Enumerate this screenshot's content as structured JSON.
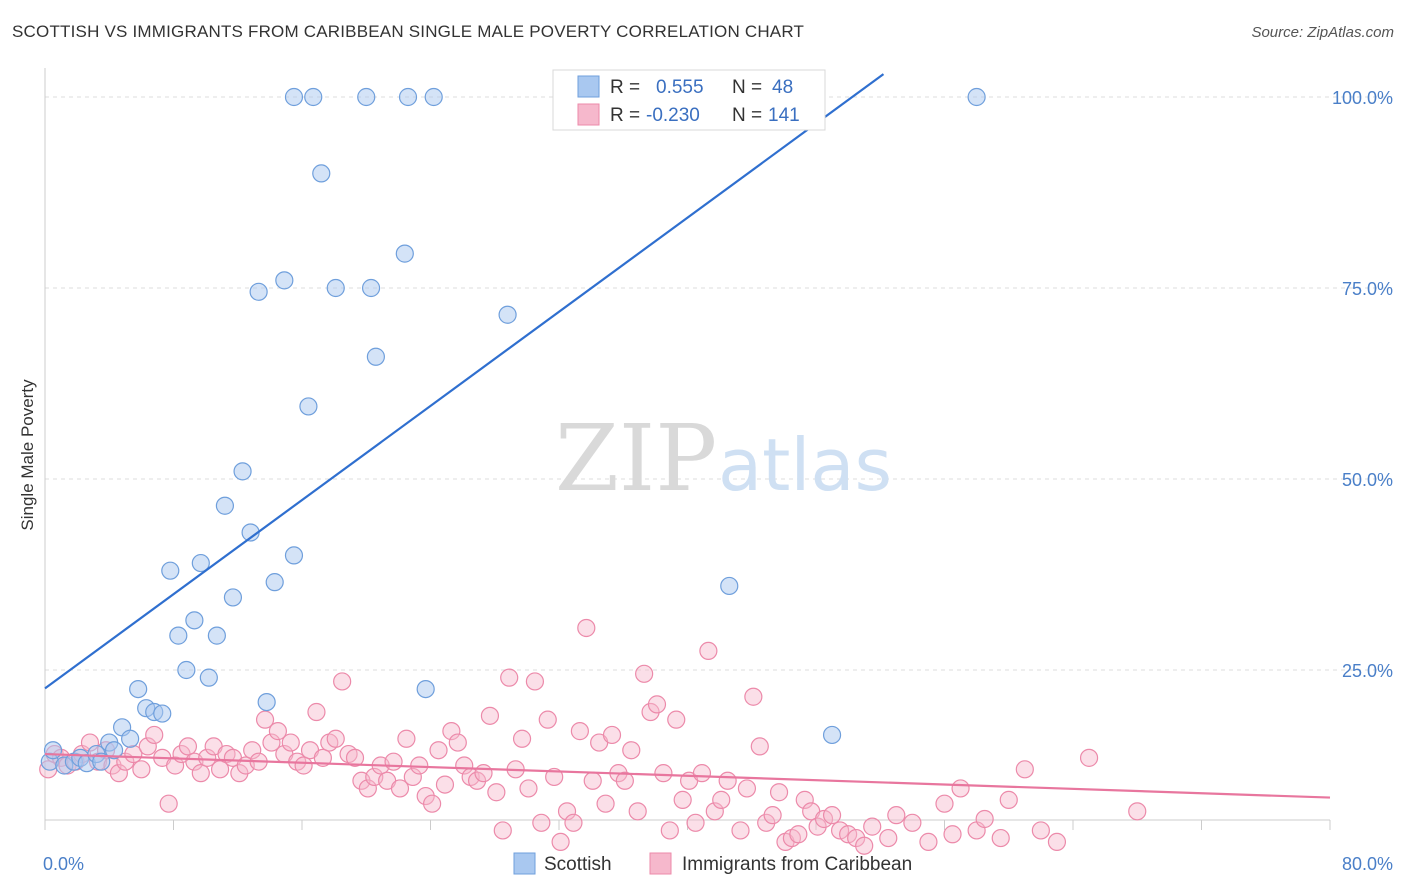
{
  "title": "SCOTTISH VS IMMIGRANTS FROM CARIBBEAN SINGLE MALE POVERTY CORRELATION CHART",
  "source": "Source: ZipAtlas.com",
  "watermark": {
    "zip": "ZIP",
    "atlas": "atlas"
  },
  "colors": {
    "scottish_fill": "#a9c8f0",
    "scottish_stroke": "#6f9fdc",
    "scottish_line": "#2f6fcf",
    "caribbean_fill": "#f6b8cc",
    "caribbean_stroke": "#ec8aaa",
    "caribbean_line": "#e8769e",
    "grid": "#dddddd",
    "tick_label": "#4a7fc8"
  },
  "legend_top": {
    "rows": [
      {
        "r_label": "R =",
        "r_value": "0.555",
        "n_label": "N =",
        "n_value": "48"
      },
      {
        "r_label": "R =",
        "r_value": "-0.230",
        "n_label": "N =",
        "n_value": "141"
      }
    ]
  },
  "legend_bottom": [
    "Scottish",
    "Immigrants from Caribbean"
  ],
  "chart_data": {
    "type": "scatter",
    "title": "SCOTTISH VS IMMIGRANTS FROM CARIBBEAN SINGLE MALE POVERTY CORRELATION CHART",
    "xlabel": "",
    "ylabel": "Single Male Poverty",
    "xlim": [
      0,
      80
    ],
    "ylim": [
      0,
      105
    ],
    "x_tick_labels": [
      "0.0%",
      "80.0%"
    ],
    "y_ticks": [
      25,
      50,
      75,
      100
    ],
    "y_tick_labels": [
      "25.0%",
      "50.0%",
      "75.0%",
      "100.0%"
    ],
    "grid": true,
    "legend_position": "top-center",
    "series": [
      {
        "name": "Scottish",
        "r": 0.555,
        "n": 48,
        "trend": {
          "x": [
            0,
            52.2
          ],
          "y": [
            22.6,
            103.0
          ]
        },
        "points": [
          [
            0.3,
            13.0
          ],
          [
            0.5,
            14.5
          ],
          [
            1.2,
            12.5
          ],
          [
            1.8,
            13.0
          ],
          [
            2.2,
            13.5
          ],
          [
            2.6,
            12.8
          ],
          [
            3.2,
            14.0
          ],
          [
            3.5,
            13.0
          ],
          [
            4.0,
            15.5
          ],
          [
            4.3,
            14.5
          ],
          [
            4.8,
            17.5
          ],
          [
            5.3,
            16.0
          ],
          [
            5.8,
            22.5
          ],
          [
            6.3,
            20.0
          ],
          [
            6.8,
            19.5
          ],
          [
            7.3,
            19.3
          ],
          [
            7.8,
            38.0
          ],
          [
            8.3,
            29.5
          ],
          [
            8.8,
            25.0
          ],
          [
            9.3,
            31.5
          ],
          [
            9.7,
            39.0
          ],
          [
            10.2,
            24.0
          ],
          [
            10.7,
            29.5
          ],
          [
            11.2,
            46.5
          ],
          [
            11.7,
            34.5
          ],
          [
            12.3,
            51.0
          ],
          [
            12.8,
            43.0
          ],
          [
            13.3,
            74.5
          ],
          [
            13.8,
            20.8
          ],
          [
            14.3,
            36.5
          ],
          [
            14.9,
            76.0
          ],
          [
            15.5,
            40.0
          ],
          [
            16.4,
            59.5
          ],
          [
            17.2,
            90.0
          ],
          [
            18.1,
            75.0
          ],
          [
            20.3,
            75.0
          ],
          [
            20.6,
            66.0
          ],
          [
            22.4,
            79.5
          ],
          [
            23.7,
            22.5
          ],
          [
            28.8,
            71.5
          ],
          [
            42.6,
            36.0
          ],
          [
            49.0,
            16.5
          ],
          [
            15.5,
            100.0
          ],
          [
            16.7,
            100.0
          ],
          [
            20.0,
            100.0
          ],
          [
            22.6,
            100.0
          ],
          [
            24.2,
            100.0
          ],
          [
            58.0,
            100.0
          ]
        ]
      },
      {
        "name": "Immigrants from Caribbean",
        "r": -0.23,
        "n": 141,
        "trend": {
          "x": [
            0,
            80
          ],
          "y": [
            14.0,
            8.3
          ]
        },
        "points": [
          [
            0.2,
            12.0
          ],
          [
            0.6,
            14.0
          ],
          [
            1.0,
            13.5
          ],
          [
            1.4,
            12.5
          ],
          [
            1.9,
            13.0
          ],
          [
            2.3,
            14.0
          ],
          [
            2.8,
            15.5
          ],
          [
            3.3,
            13.0
          ],
          [
            3.8,
            14.5
          ],
          [
            4.2,
            12.5
          ],
          [
            4.6,
            11.5
          ],
          [
            5.0,
            13.0
          ],
          [
            5.5,
            14.0
          ],
          [
            6.0,
            12.0
          ],
          [
            6.4,
            15.0
          ],
          [
            6.8,
            16.5
          ],
          [
            7.3,
            13.5
          ],
          [
            7.7,
            7.5
          ],
          [
            8.1,
            12.5
          ],
          [
            8.5,
            14.0
          ],
          [
            8.9,
            15.0
          ],
          [
            9.3,
            13.0
          ],
          [
            9.7,
            11.5
          ],
          [
            10.1,
            13.5
          ],
          [
            10.5,
            15.0
          ],
          [
            10.9,
            12.0
          ],
          [
            11.3,
            14.0
          ],
          [
            11.7,
            13.5
          ],
          [
            12.1,
            11.5
          ],
          [
            12.5,
            12.5
          ],
          [
            12.9,
            14.5
          ],
          [
            13.3,
            13.0
          ],
          [
            13.7,
            18.5
          ],
          [
            14.1,
            15.5
          ],
          [
            14.5,
            17.0
          ],
          [
            14.9,
            14.0
          ],
          [
            15.3,
            15.5
          ],
          [
            15.7,
            13.0
          ],
          [
            16.1,
            12.5
          ],
          [
            16.5,
            14.5
          ],
          [
            16.9,
            19.5
          ],
          [
            17.3,
            13.5
          ],
          [
            17.7,
            15.5
          ],
          [
            18.1,
            16.0
          ],
          [
            18.5,
            23.5
          ],
          [
            18.9,
            14.0
          ],
          [
            19.3,
            13.5
          ],
          [
            19.7,
            10.5
          ],
          [
            20.1,
            9.5
          ],
          [
            20.5,
            11.0
          ],
          [
            20.9,
            12.5
          ],
          [
            21.3,
            10.5
          ],
          [
            21.7,
            13.0
          ],
          [
            22.1,
            9.5
          ],
          [
            22.5,
            16.0
          ],
          [
            22.9,
            11.0
          ],
          [
            23.3,
            12.5
          ],
          [
            23.7,
            8.5
          ],
          [
            24.1,
            7.5
          ],
          [
            24.5,
            14.5
          ],
          [
            24.9,
            10.0
          ],
          [
            25.3,
            17.0
          ],
          [
            25.7,
            15.5
          ],
          [
            26.1,
            12.5
          ],
          [
            26.5,
            11.0
          ],
          [
            26.9,
            10.5
          ],
          [
            27.3,
            11.5
          ],
          [
            27.7,
            19.0
          ],
          [
            28.1,
            9.0
          ],
          [
            28.5,
            4.0
          ],
          [
            28.9,
            24.0
          ],
          [
            29.3,
            12.0
          ],
          [
            29.7,
            16.0
          ],
          [
            30.1,
            9.5
          ],
          [
            30.5,
            23.5
          ],
          [
            30.9,
            5.0
          ],
          [
            31.3,
            18.5
          ],
          [
            31.7,
            11.0
          ],
          [
            32.1,
            2.5
          ],
          [
            32.5,
            6.5
          ],
          [
            32.9,
            5.0
          ],
          [
            33.3,
            17.0
          ],
          [
            33.7,
            30.5
          ],
          [
            34.1,
            10.5
          ],
          [
            34.5,
            15.5
          ],
          [
            34.9,
            7.5
          ],
          [
            35.3,
            16.5
          ],
          [
            35.7,
            11.5
          ],
          [
            36.1,
            10.5
          ],
          [
            36.5,
            14.5
          ],
          [
            36.9,
            6.5
          ],
          [
            37.3,
            24.5
          ],
          [
            37.7,
            19.5
          ],
          [
            38.1,
            20.5
          ],
          [
            38.5,
            11.5
          ],
          [
            38.9,
            4.0
          ],
          [
            39.3,
            18.5
          ],
          [
            39.7,
            8.0
          ],
          [
            40.1,
            10.5
          ],
          [
            40.5,
            5.0
          ],
          [
            40.9,
            11.5
          ],
          [
            41.3,
            27.5
          ],
          [
            41.7,
            6.5
          ],
          [
            42.1,
            8.0
          ],
          [
            42.5,
            10.5
          ],
          [
            43.3,
            4.0
          ],
          [
            43.7,
            9.5
          ],
          [
            44.1,
            21.5
          ],
          [
            44.5,
            15.0
          ],
          [
            44.9,
            5.0
          ],
          [
            45.3,
            6.0
          ],
          [
            45.7,
            9.0
          ],
          [
            46.1,
            2.5
          ],
          [
            46.5,
            3.0
          ],
          [
            46.9,
            3.5
          ],
          [
            47.3,
            8.0
          ],
          [
            47.7,
            6.5
          ],
          [
            48.1,
            4.5
          ],
          [
            48.5,
            5.5
          ],
          [
            49.0,
            6.0
          ],
          [
            49.5,
            4.0
          ],
          [
            50.0,
            3.5
          ],
          [
            50.5,
            3.0
          ],
          [
            51.0,
            2.0
          ],
          [
            51.5,
            4.5
          ],
          [
            52.5,
            3.0
          ],
          [
            53.0,
            6.0
          ],
          [
            54.0,
            5.0
          ],
          [
            55.0,
            2.5
          ],
          [
            56.0,
            7.5
          ],
          [
            56.5,
            3.5
          ],
          [
            57.0,
            9.5
          ],
          [
            58.0,
            4.0
          ],
          [
            58.5,
            5.5
          ],
          [
            59.5,
            3.0
          ],
          [
            60.0,
            8.0
          ],
          [
            61.0,
            12.0
          ],
          [
            62.0,
            4.0
          ],
          [
            63.0,
            2.5
          ],
          [
            65.0,
            13.5
          ],
          [
            68.0,
            6.5
          ]
        ]
      }
    ]
  }
}
